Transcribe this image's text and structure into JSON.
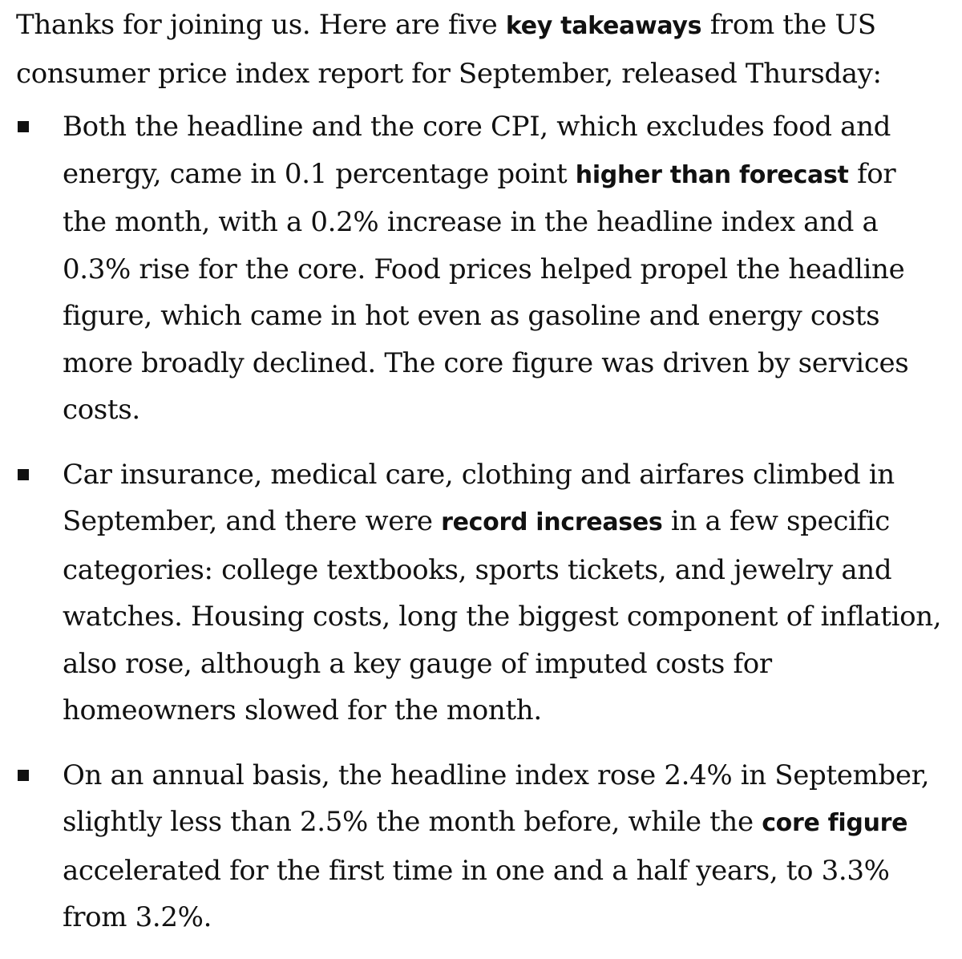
{
  "intro": {
    "before": "Thanks for joining us. Here are five ",
    "bold": "key takeaways",
    "after": " from the US consumer price index report for September, released Thursday:"
  },
  "takeaways": [
    {
      "before": "Both the headline and the core CPI, which excludes food and energy, came in 0.1 percentage point ",
      "bold": "higher than forecast",
      "after": " for the month, with a 0.2% increase in the headline index and a 0.3% rise for the core. Food prices helped propel the headline figure, which came in hot even as gasoline and energy costs more broadly declined. The core figure was driven by services costs."
    },
    {
      "before": "Car insurance, medical care, clothing and airfares climbed in September, and there were ",
      "bold": "record increases",
      "after": " in a few specific categories: college textbooks, sports tickets, and jewelry and watches. Housing costs, long the biggest component of inflation, also rose, although a key gauge of imputed costs for homeowners slowed for the month."
    },
    {
      "before": "On an annual basis, the headline index rose 2.4% in September, slightly less than 2.5% the month before, while the ",
      "bold": "core figure",
      "after": " accelerated for the first time in one and a half years, to 3.3% from 3.2%."
    }
  ]
}
